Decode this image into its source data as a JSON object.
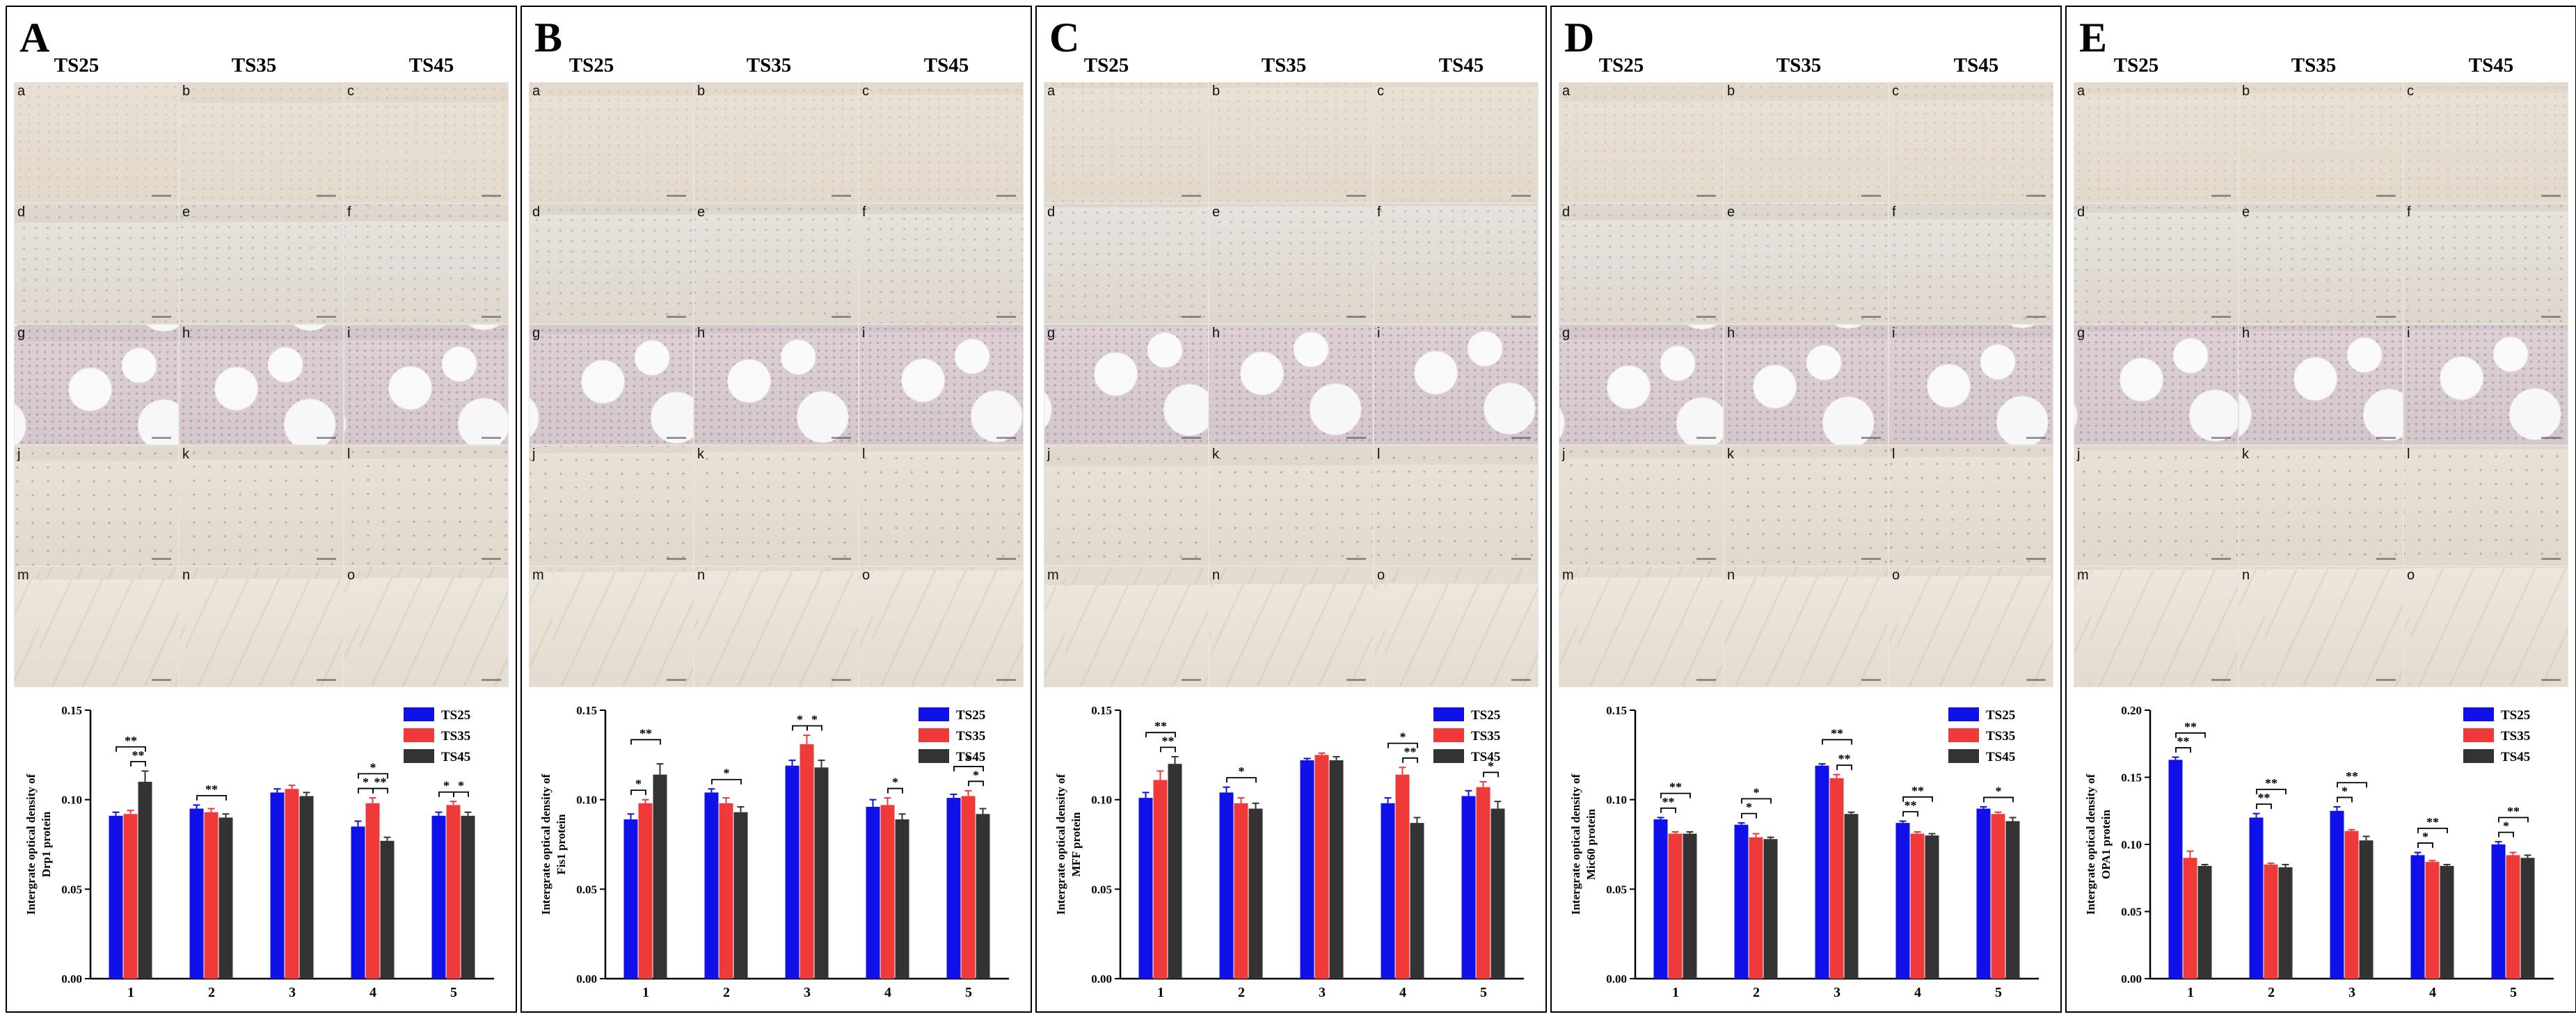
{
  "figure": {
    "column_headers": [
      "TS25",
      "TS35",
      "TS45"
    ],
    "tile_labels": [
      "a",
      "b",
      "c",
      "d",
      "e",
      "f",
      "g",
      "h",
      "i",
      "j",
      "k",
      "l",
      "m",
      "n",
      "o"
    ],
    "group_colors": {
      "TS25": "#1010e8",
      "TS35": "#f03a3a",
      "TS45": "#333333"
    },
    "bracket_color": "#000000",
    "panels": [
      {
        "letter": "A",
        "ylabel_lines": [
          "Intergrate optical density of",
          "Drp1 protein"
        ]
      },
      {
        "letter": "B",
        "ylabel_lines": [
          "Intergrate optical density of",
          "Fis1 protein"
        ]
      },
      {
        "letter": "C",
        "ylabel_lines": [
          "Intergrate optical density of",
          "MFF protein"
        ]
      },
      {
        "letter": "D",
        "ylabel_lines": [
          "Intergrate optical density of",
          "Mic60 protein"
        ]
      },
      {
        "letter": "E",
        "ylabel_lines": [
          "Intergrate optical density of",
          "OPA1 protein"
        ]
      }
    ]
  },
  "chart_data": [
    {
      "type": "bar",
      "panel": "A",
      "title": "",
      "xlabel": "",
      "ylabel": "Intergrate optical density of Drp1 protein",
      "categories": [
        "1",
        "2",
        "3",
        "4",
        "5"
      ],
      "series": [
        {
          "name": "TS25",
          "values": [
            0.091,
            0.095,
            0.104,
            0.085,
            0.091
          ],
          "errors": [
            0.002,
            0.002,
            0.002,
            0.003,
            0.002
          ]
        },
        {
          "name": "TS35",
          "values": [
            0.092,
            0.093,
            0.106,
            0.098,
            0.097
          ],
          "errors": [
            0.002,
            0.002,
            0.002,
            0.003,
            0.002
          ]
        },
        {
          "name": "TS45",
          "values": [
            0.11,
            0.09,
            0.102,
            0.077,
            0.091
          ],
          "errors": [
            0.006,
            0.002,
            0.002,
            0.002,
            0.002
          ]
        }
      ],
      "ylim": [
        0,
        0.15
      ],
      "yticks": [
        "0.00",
        "0.05",
        "0.10",
        "0.15"
      ],
      "legend": "top-right",
      "significance": [
        {
          "cat": 0,
          "from": 0,
          "to": 2,
          "label": "**",
          "level": 1
        },
        {
          "cat": 0,
          "from": 1,
          "to": 2,
          "label": "**",
          "level": 0
        },
        {
          "cat": 1,
          "from": 0,
          "to": 2,
          "label": "**",
          "level": 0
        },
        {
          "cat": 3,
          "from": 0,
          "to": 2,
          "label": "*",
          "level": 1
        },
        {
          "cat": 3,
          "from": 0,
          "to": 1,
          "label": "*",
          "level": 0
        },
        {
          "cat": 3,
          "from": 1,
          "to": 2,
          "label": "**",
          "level": 0
        },
        {
          "cat": 4,
          "from": 0,
          "to": 1,
          "label": "*",
          "level": 0
        },
        {
          "cat": 4,
          "from": 1,
          "to": 2,
          "label": "*",
          "level": 0
        }
      ]
    },
    {
      "type": "bar",
      "panel": "B",
      "title": "",
      "xlabel": "",
      "ylabel": "Intergrate optical density of Fis1 protein",
      "categories": [
        "1",
        "2",
        "3",
        "4",
        "5"
      ],
      "series": [
        {
          "name": "TS25",
          "values": [
            0.089,
            0.104,
            0.119,
            0.096,
            0.101
          ],
          "errors": [
            0.003,
            0.002,
            0.003,
            0.004,
            0.002
          ]
        },
        {
          "name": "TS35",
          "values": [
            0.098,
            0.098,
            0.131,
            0.097,
            0.102
          ],
          "errors": [
            0.002,
            0.003,
            0.005,
            0.004,
            0.003
          ]
        },
        {
          "name": "TS45",
          "values": [
            0.114,
            0.093,
            0.118,
            0.089,
            0.092
          ],
          "errors": [
            0.006,
            0.003,
            0.004,
            0.003,
            0.003
          ]
        }
      ],
      "ylim": [
        0,
        0.15
      ],
      "yticks": [
        "0.00",
        "0.05",
        "0.10",
        "0.15"
      ],
      "legend": "top-right",
      "significance": [
        {
          "cat": 0,
          "from": 0,
          "to": 2,
          "label": "**",
          "level": 1
        },
        {
          "cat": 0,
          "from": 0,
          "to": 1,
          "label": "*",
          "level": 0
        },
        {
          "cat": 1,
          "from": 0,
          "to": 2,
          "label": "*",
          "level": 0
        },
        {
          "cat": 2,
          "from": 0,
          "to": 1,
          "label": "*",
          "level": 0
        },
        {
          "cat": 2,
          "from": 1,
          "to": 2,
          "label": "*",
          "level": 0
        },
        {
          "cat": 3,
          "from": 1,
          "to": 2,
          "label": "*",
          "level": 0
        },
        {
          "cat": 4,
          "from": 0,
          "to": 2,
          "label": "*",
          "level": 1
        },
        {
          "cat": 4,
          "from": 1,
          "to": 2,
          "label": "*",
          "level": 0
        }
      ]
    },
    {
      "type": "bar",
      "panel": "C",
      "title": "",
      "xlabel": "",
      "ylabel": "Intergrate optical density of MFF protein",
      "categories": [
        "1",
        "2",
        "3",
        "4",
        "5"
      ],
      "series": [
        {
          "name": "TS25",
          "values": [
            0.101,
            0.104,
            0.122,
            0.098,
            0.102
          ],
          "errors": [
            0.003,
            0.003,
            0.001,
            0.003,
            0.003
          ]
        },
        {
          "name": "TS35",
          "values": [
            0.111,
            0.098,
            0.125,
            0.114,
            0.107
          ],
          "errors": [
            0.005,
            0.003,
            0.001,
            0.004,
            0.003
          ]
        },
        {
          "name": "TS45",
          "values": [
            0.12,
            0.095,
            0.122,
            0.087,
            0.095
          ],
          "errors": [
            0.004,
            0.003,
            0.002,
            0.003,
            0.004
          ]
        }
      ],
      "ylim": [
        0,
        0.15
      ],
      "yticks": [
        "0.00",
        "0.05",
        "0.10",
        "0.15"
      ],
      "legend": "top-right",
      "significance": [
        {
          "cat": 0,
          "from": 0,
          "to": 2,
          "label": "**",
          "level": 1
        },
        {
          "cat": 0,
          "from": 1,
          "to": 2,
          "label": "**",
          "level": 0
        },
        {
          "cat": 1,
          "from": 0,
          "to": 2,
          "label": "*",
          "level": 0
        },
        {
          "cat": 3,
          "from": 0,
          "to": 2,
          "label": "*",
          "level": 1
        },
        {
          "cat": 3,
          "from": 1,
          "to": 2,
          "label": "**",
          "level": 0
        },
        {
          "cat": 4,
          "from": 1,
          "to": 2,
          "label": "*",
          "level": 0
        }
      ]
    },
    {
      "type": "bar",
      "panel": "D",
      "title": "",
      "xlabel": "",
      "ylabel": "Intergrate optical density of Mic60 protein",
      "categories": [
        "1",
        "2",
        "3",
        "4",
        "5"
      ],
      "series": [
        {
          "name": "TS25",
          "values": [
            0.089,
            0.086,
            0.119,
            0.087,
            0.095
          ],
          "errors": [
            0.001,
            0.001,
            0.001,
            0.001,
            0.001
          ]
        },
        {
          "name": "TS35",
          "values": [
            0.081,
            0.079,
            0.112,
            0.081,
            0.092
          ],
          "errors": [
            0.001,
            0.002,
            0.002,
            0.001,
            0.001
          ]
        },
        {
          "name": "TS45",
          "values": [
            0.081,
            0.078,
            0.092,
            0.08,
            0.088
          ],
          "errors": [
            0.001,
            0.001,
            0.001,
            0.001,
            0.002
          ]
        }
      ],
      "ylim": [
        0,
        0.15
      ],
      "yticks": [
        "0.00",
        "0.05",
        "0.10",
        "0.15"
      ],
      "legend": "top-right",
      "significance": [
        {
          "cat": 0,
          "from": 0,
          "to": 2,
          "label": "**",
          "level": 1
        },
        {
          "cat": 0,
          "from": 0,
          "to": 1,
          "label": "**",
          "level": 0
        },
        {
          "cat": 1,
          "from": 0,
          "to": 2,
          "label": "*",
          "level": 1
        },
        {
          "cat": 1,
          "from": 0,
          "to": 1,
          "label": "*",
          "level": 0
        },
        {
          "cat": 2,
          "from": 0,
          "to": 2,
          "label": "**",
          "level": 1
        },
        {
          "cat": 2,
          "from": 1,
          "to": 2,
          "label": "**",
          "level": 0
        },
        {
          "cat": 3,
          "from": 0,
          "to": 2,
          "label": "**",
          "level": 1
        },
        {
          "cat": 3,
          "from": 0,
          "to": 1,
          "label": "**",
          "level": 0
        },
        {
          "cat": 4,
          "from": 0,
          "to": 2,
          "label": "*",
          "level": 0
        }
      ]
    },
    {
      "type": "bar",
      "panel": "E",
      "title": "",
      "xlabel": "",
      "ylabel": "Intergrate optical density of OPA1 protein",
      "categories": [
        "1",
        "2",
        "3",
        "4",
        "5"
      ],
      "series": [
        {
          "name": "TS25",
          "values": [
            0.163,
            0.12,
            0.125,
            0.092,
            0.1
          ],
          "errors": [
            0.002,
            0.003,
            0.003,
            0.002,
            0.002
          ]
        },
        {
          "name": "TS35",
          "values": [
            0.09,
            0.085,
            0.11,
            0.087,
            0.092
          ],
          "errors": [
            0.005,
            0.001,
            0.001,
            0.001,
            0.002
          ]
        },
        {
          "name": "TS45",
          "values": [
            0.084,
            0.083,
            0.103,
            0.084,
            0.09
          ],
          "errors": [
            0.001,
            0.002,
            0.003,
            0.001,
            0.002
          ]
        }
      ],
      "ylim": [
        0,
        0.2
      ],
      "yticks": [
        "0.00",
        "0.05",
        "0.10",
        "0.15",
        "0.20"
      ],
      "legend": "top-right",
      "significance": [
        {
          "cat": 0,
          "from": 0,
          "to": 2,
          "label": "**",
          "level": 1
        },
        {
          "cat": 0,
          "from": 0,
          "to": 1,
          "label": "**",
          "level": 0
        },
        {
          "cat": 1,
          "from": 0,
          "to": 2,
          "label": "**",
          "level": 1
        },
        {
          "cat": 1,
          "from": 0,
          "to": 1,
          "label": "**",
          "level": 0
        },
        {
          "cat": 2,
          "from": 0,
          "to": 2,
          "label": "**",
          "level": 1
        },
        {
          "cat": 2,
          "from": 0,
          "to": 1,
          "label": "*",
          "level": 0
        },
        {
          "cat": 3,
          "from": 0,
          "to": 2,
          "label": "**",
          "level": 1
        },
        {
          "cat": 3,
          "from": 0,
          "to": 1,
          "label": "*",
          "level": 0
        },
        {
          "cat": 4,
          "from": 0,
          "to": 2,
          "label": "**",
          "level": 1
        },
        {
          "cat": 4,
          "from": 0,
          "to": 1,
          "label": "*",
          "level": 0
        }
      ]
    }
  ]
}
